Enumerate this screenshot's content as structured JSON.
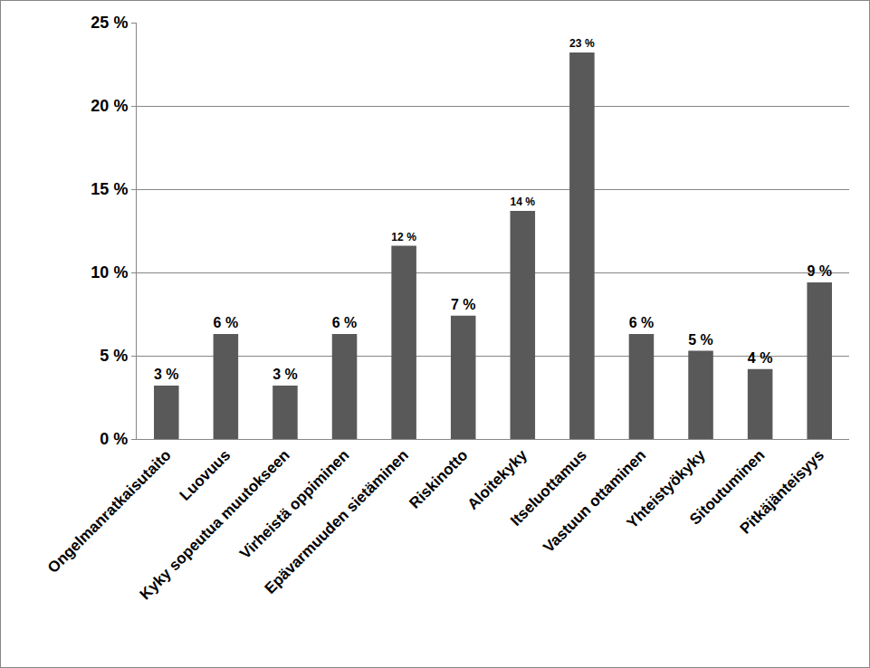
{
  "chart_data": {
    "type": "bar",
    "categories": [
      "Ongelmanratkaisutaito",
      "Luovuus",
      "Kyky sopeutua muutokseen",
      "Virheistä oppiminen",
      "Epävarmuuden sietäminen",
      "Riskinotto",
      "Aloitekyky",
      "Itseluottamus",
      "Vastuun ottaminen",
      "Yhteistyökyky",
      "Sitoutuminen",
      "Pitkäjänteisyys"
    ],
    "values": [
      3.2,
      6.3,
      3.2,
      6.3,
      11.6,
      7.4,
      13.7,
      23.2,
      6.3,
      5.3,
      4.2,
      9.4
    ],
    "value_labels": [
      "3 %",
      "6 %",
      "3 %",
      "6 %",
      "12 %",
      "7 %",
      "14 %",
      "23 %",
      "6 %",
      "5 %",
      "4 %",
      "9 %"
    ],
    "color": "#595959",
    "ylim": [
      0,
      25
    ],
    "yticks": [
      {
        "value": 0,
        "label": "0 %"
      },
      {
        "value": 5,
        "label": "5 %"
      },
      {
        "value": 10,
        "label": "10 %"
      },
      {
        "value": 15,
        "label": "15 %"
      },
      {
        "value": 20,
        "label": "20 %"
      },
      {
        "value": 25,
        "label": "25 %"
      }
    ],
    "grid": true,
    "data_labels": true
  }
}
